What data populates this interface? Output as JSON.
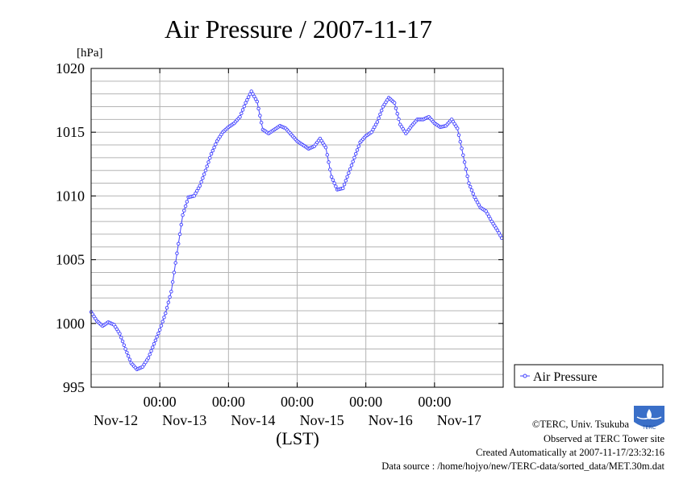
{
  "title": "Air Pressure / 2007-11-17",
  "unit_label": "[hPa]",
  "credits": {
    "copyright": "©TERC, Univ. Tsukuba",
    "observed": "Observed at TERC Tower site",
    "created": "Created Automatically at 2007-11-17/23:32:16",
    "source": "Data source : /home/hojyo/new/TERC-data/sorted_data/MET.30m.dat"
  },
  "logo_text": "TERC",
  "colors": {
    "series": "#4040ff",
    "grid": "#b4b4b4",
    "axis": "#000000"
  },
  "chart_data": {
    "type": "line",
    "title": "Air Pressure / 2007-11-17",
    "xlabel": "(LST)",
    "ylabel": "[hPa]",
    "x_start": "2007-11-12T00:00",
    "x_end": "2007-11-18T00:00",
    "xlim": [
      "2007-11-12T00:00",
      "2007-11-18T00:00"
    ],
    "ylim": [
      995,
      1020
    ],
    "y_ticks": [
      995,
      1000,
      1005,
      1010,
      1015,
      1020
    ],
    "y_tick_labels": [
      "995",
      "1000",
      "1005",
      "1010",
      "1015",
      "1020"
    ],
    "x_tick_labels": [
      "00:00",
      "00:00",
      "00:00",
      "00:00",
      "00:00"
    ],
    "x_tick_positions": [
      "2007-11-13T00:00",
      "2007-11-14T00:00",
      "2007-11-15T00:00",
      "2007-11-16T00:00",
      "2007-11-17T00:00"
    ],
    "date_labels": [
      "Nov-12",
      "Nov-13",
      "Nov-14",
      "Nov-15",
      "Nov-16",
      "Nov-17"
    ],
    "grid": true,
    "legend": {
      "position": "right",
      "entries": [
        "Air Pressure"
      ]
    },
    "series": [
      {
        "name": "Air Pressure",
        "marker": "circle",
        "points": [
          [
            "2007-11-12T00:00",
            1000.9
          ],
          [
            "2007-11-12T02:00",
            1000.2
          ],
          [
            "2007-11-12T04:00",
            999.8
          ],
          [
            "2007-11-12T06:00",
            1000.1
          ],
          [
            "2007-11-12T08:00",
            999.9
          ],
          [
            "2007-11-12T10:00",
            999.2
          ],
          [
            "2007-11-12T12:00",
            998.0
          ],
          [
            "2007-11-12T14:00",
            996.9
          ],
          [
            "2007-11-12T16:00",
            996.4
          ],
          [
            "2007-11-12T18:00",
            996.6
          ],
          [
            "2007-11-12T20:00",
            997.3
          ],
          [
            "2007-11-12T22:00",
            998.4
          ],
          [
            "2007-11-13T00:00",
            999.5
          ],
          [
            "2007-11-13T02:00",
            1000.8
          ],
          [
            "2007-11-13T04:00",
            1002.5
          ],
          [
            "2007-11-13T06:00",
            1005.5
          ],
          [
            "2007-11-13T08:00",
            1008.5
          ],
          [
            "2007-11-13T10:00",
            1009.9
          ],
          [
            "2007-11-13T12:00",
            1010.0
          ],
          [
            "2007-11-13T14:00",
            1010.8
          ],
          [
            "2007-11-13T16:00",
            1012.0
          ],
          [
            "2007-11-13T18:00",
            1013.3
          ],
          [
            "2007-11-13T20:00",
            1014.3
          ],
          [
            "2007-11-13T22:00",
            1015.0
          ],
          [
            "2007-11-14T00:00",
            1015.4
          ],
          [
            "2007-11-14T02:00",
            1015.7
          ],
          [
            "2007-11-14T04:00",
            1016.2
          ],
          [
            "2007-11-14T06:00",
            1017.3
          ],
          [
            "2007-11-14T08:00",
            1018.2
          ],
          [
            "2007-11-14T10:00",
            1017.4
          ],
          [
            "2007-11-14T12:00",
            1015.2
          ],
          [
            "2007-11-14T14:00",
            1014.9
          ],
          [
            "2007-11-14T16:00",
            1015.2
          ],
          [
            "2007-11-14T18:00",
            1015.5
          ],
          [
            "2007-11-14T20:00",
            1015.3
          ],
          [
            "2007-11-14T22:00",
            1014.8
          ],
          [
            "2007-11-15T00:00",
            1014.3
          ],
          [
            "2007-11-15T02:00",
            1014.0
          ],
          [
            "2007-11-15T04:00",
            1013.7
          ],
          [
            "2007-11-15T06:00",
            1013.9
          ],
          [
            "2007-11-15T08:00",
            1014.5
          ],
          [
            "2007-11-15T10:00",
            1013.8
          ],
          [
            "2007-11-15T12:00",
            1011.5
          ],
          [
            "2007-11-15T14:00",
            1010.5
          ],
          [
            "2007-11-15T16:00",
            1010.6
          ],
          [
            "2007-11-15T18:00",
            1011.8
          ],
          [
            "2007-11-15T20:00",
            1013.0
          ],
          [
            "2007-11-15T22:00",
            1014.2
          ],
          [
            "2007-11-16T00:00",
            1014.7
          ],
          [
            "2007-11-16T02:00",
            1015.0
          ],
          [
            "2007-11-16T04:00",
            1015.8
          ],
          [
            "2007-11-16T06:00",
            1017.0
          ],
          [
            "2007-11-16T08:00",
            1017.7
          ],
          [
            "2007-11-16T10:00",
            1017.3
          ],
          [
            "2007-11-16T12:00",
            1015.6
          ],
          [
            "2007-11-16T14:00",
            1014.9
          ],
          [
            "2007-11-16T16:00",
            1015.5
          ],
          [
            "2007-11-16T18:00",
            1016.0
          ],
          [
            "2007-11-16T20:00",
            1016.0
          ],
          [
            "2007-11-16T22:00",
            1016.2
          ],
          [
            "2007-11-17T00:00",
            1015.7
          ],
          [
            "2007-11-17T02:00",
            1015.4
          ],
          [
            "2007-11-17T04:00",
            1015.5
          ],
          [
            "2007-11-17T06:00",
            1016.0
          ],
          [
            "2007-11-17T08:00",
            1015.3
          ],
          [
            "2007-11-17T10:00",
            1013.2
          ],
          [
            "2007-11-17T12:00",
            1011.0
          ],
          [
            "2007-11-17T14:00",
            1009.9
          ],
          [
            "2007-11-17T16:00",
            1009.1
          ],
          [
            "2007-11-17T18:00",
            1008.8
          ],
          [
            "2007-11-17T20:00",
            1008.0
          ],
          [
            "2007-11-17T22:00",
            1007.3
          ],
          [
            "2007-11-17T23:30",
            1006.7
          ]
        ]
      }
    ]
  }
}
